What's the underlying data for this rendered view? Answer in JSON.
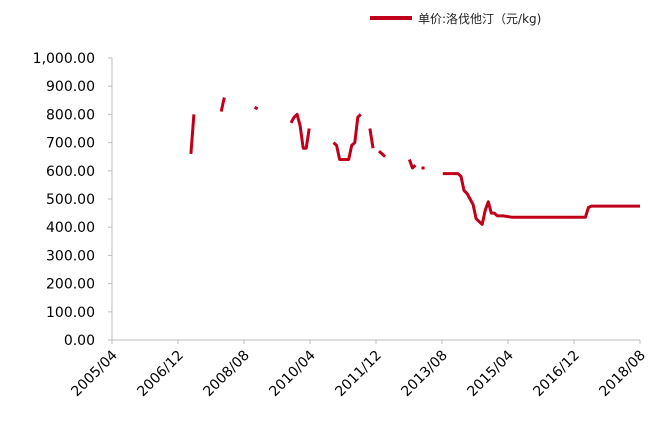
{
  "chart_data": {
    "type": "line",
    "legend": {
      "placement": "top-right"
    },
    "grid": false,
    "ylim": [
      0,
      1000
    ],
    "y_ticks": [
      "0.00",
      "100.00",
      "200.00",
      "300.00",
      "400.00",
      "500.00",
      "600.00",
      "700.00",
      "800.00",
      "900.00",
      "1,000.00"
    ],
    "x_ticks": [
      "2005/04",
      "2006/12",
      "2008/08",
      "2010/04",
      "2011/12",
      "2013/08",
      "2015/04",
      "2016/12",
      "2018/08"
    ],
    "x_range_months": [
      "2005-04",
      "2019-10"
    ],
    "series": [
      {
        "name": "单价:洛伐他汀（元/kg)",
        "color": "#c0001a",
        "segments": [
          [
            [
              "2007-06",
              660
            ],
            [
              "2007-07",
              800
            ]
          ],
          [
            [
              "2008-04",
              810
            ],
            [
              "2008-05",
              860
            ]
          ],
          [
            [
              "2009-03",
              825
            ],
            [
              "2009-04",
              820
            ]
          ],
          [
            [
              "2010-03",
              770
            ],
            [
              "2010-04",
              790
            ],
            [
              "2010-05",
              800
            ],
            [
              "2010-06",
              760
            ],
            [
              "2010-07",
              680
            ],
            [
              "2010-08",
              680
            ],
            [
              "2010-09",
              750
            ]
          ],
          [
            [
              "2011-05",
              700
            ],
            [
              "2011-06",
              690
            ],
            [
              "2011-07",
              640
            ],
            [
              "2011-08",
              640
            ],
            [
              "2011-09",
              640
            ],
            [
              "2011-10",
              640
            ],
            [
              "2011-11",
              690
            ],
            [
              "2011-12",
              700
            ],
            [
              "2012-01",
              790
            ],
            [
              "2012-02",
              800
            ]
          ],
          [
            [
              "2012-05",
              750
            ],
            [
              "2012-06",
              680
            ]
          ],
          [
            [
              "2012-08",
              670
            ],
            [
              "2012-09",
              660
            ],
            [
              "2012-10",
              650
            ]
          ],
          [
            [
              "2013-06",
              640
            ],
            [
              "2013-07",
              610
            ],
            [
              "2013-08",
              620
            ]
          ],
          [
            [
              "2013-10",
              610
            ],
            [
              "2013-11",
              610
            ]
          ],
          [
            [
              "2014-05",
              590
            ],
            [
              "2014-06",
              590
            ],
            [
              "2014-07",
              590
            ],
            [
              "2014-08",
              590
            ],
            [
              "2014-09",
              590
            ],
            [
              "2014-10",
              590
            ],
            [
              "2014-11",
              580
            ],
            [
              "2014-12",
              530
            ],
            [
              "2015-01",
              520
            ],
            [
              "2015-02",
              500
            ],
            [
              "2015-03",
              480
            ],
            [
              "2015-04",
              430
            ],
            [
              "2015-05",
              420
            ],
            [
              "2015-06",
              410
            ],
            [
              "2015-07",
              460
            ],
            [
              "2015-08",
              490
            ],
            [
              "2015-09",
              450
            ],
            [
              "2015-10",
              450
            ],
            [
              "2015-11",
              440
            ],
            [
              "2015-12",
              440
            ],
            [
              "2016-01",
              440
            ],
            [
              "2016-04",
              435
            ],
            [
              "2017-01",
              435
            ],
            [
              "2017-07",
              435
            ],
            [
              "2018-01",
              435
            ],
            [
              "2018-04",
              435
            ],
            [
              "2018-05",
              470
            ],
            [
              "2018-06",
              475
            ],
            [
              "2018-08",
              475
            ],
            [
              "2018-12",
              475
            ],
            [
              "2019-04",
              475
            ],
            [
              "2019-10",
              475
            ]
          ]
        ]
      }
    ]
  }
}
